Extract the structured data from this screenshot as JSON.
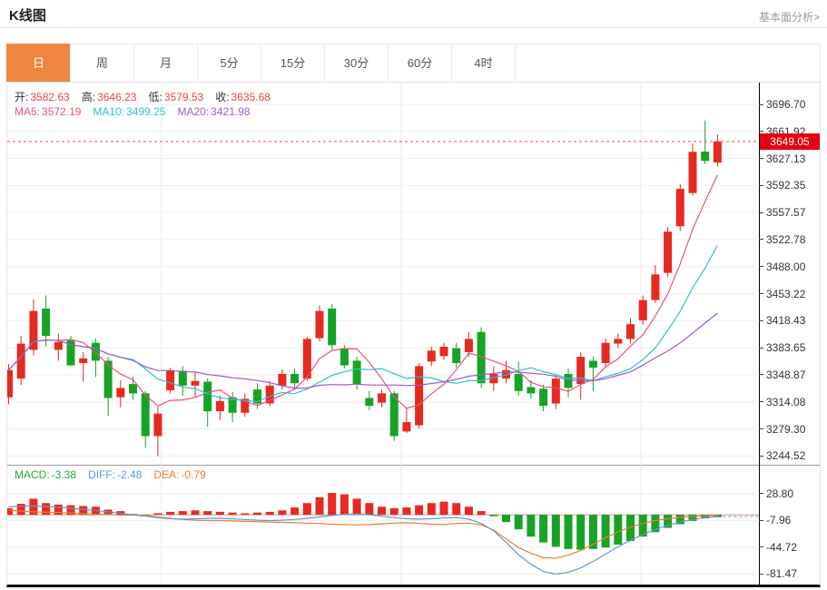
{
  "page": {
    "title": "K线图",
    "analysis_link": "基本面分析>"
  },
  "tabs": {
    "items": [
      "日",
      "周",
      "月",
      "5分",
      "15分",
      "30分",
      "60分",
      "4时"
    ],
    "active_index": 0
  },
  "legend": {
    "ohlc": [
      {
        "label": "开:",
        "value": "3582.63"
      },
      {
        "label": "高:",
        "value": "3646.23"
      },
      {
        "label": "低:",
        "value": "3579.53"
      },
      {
        "label": "收:",
        "value": "3635.68"
      }
    ],
    "ohlc_label_color": "#333333",
    "ohlc_value_color": "#e8453f",
    "ma": [
      {
        "label": "MA5:",
        "value": "3572.19",
        "color": "#e8537f"
      },
      {
        "label": "MA10:",
        "value": "3499.25",
        "color": "#2ec0cb"
      },
      {
        "label": "MA20:",
        "value": "3421.98",
        "color": "#a15dc6"
      }
    ],
    "macd": [
      {
        "label": "MACD:",
        "value": "-3.38",
        "color": "#21a838"
      },
      {
        "label": "DIFF:",
        "value": "-2.48",
        "color": "#5b9bd5"
      },
      {
        "label": "DEA:",
        "value": "-0.79",
        "color": "#ed7d31"
      }
    ]
  },
  "price_marker": "3649.05",
  "axis": {
    "price_labels": [
      "3696.70",
      "3661.92",
      "3627.13",
      "3592.35",
      "3557.57",
      "3522.78",
      "3488.00",
      "3453.22",
      "3418.43",
      "3383.65",
      "3348.87",
      "3314.08",
      "3279.30",
      "3244.52"
    ],
    "macd_labels": [
      "28.80",
      "-7.96",
      "-44.72",
      "-81.47"
    ]
  },
  "colors": {
    "up": "#e62a21",
    "down": "#17a325",
    "ma5": "#e8537f",
    "ma10": "#2ec0cb",
    "ma20": "#a15dc6",
    "diff": "#5b9bd5",
    "dea": "#ed7d31",
    "marker_bg": "#e60012",
    "marker_line": "#ff4a4a",
    "tab_active": "#ee8540",
    "grid": "#efefef",
    "vgrid": "#e9e9e9",
    "zero_line": "#c96a6a"
  },
  "chart_data": [
    {
      "type": "candlestick",
      "title": "K线图",
      "period": "日",
      "legend_position": "top-left",
      "grid": true,
      "current_price": 3649.05,
      "y_ticks": [
        3696.7,
        3661.92,
        3627.13,
        3592.35,
        3557.57,
        3522.78,
        3488.0,
        3453.22,
        3418.43,
        3383.65,
        3348.87,
        3314.08,
        3279.3,
        3244.52
      ],
      "ma_values": {
        "MA5": 3572.19,
        "MA10": 3499.25,
        "MA20": 3421.98
      },
      "ohlc": [
        [
          3320,
          3363,
          3311,
          3355
        ],
        [
          3344,
          3399,
          3336,
          3389
        ],
        [
          3381,
          3446,
          3374,
          3431
        ],
        [
          3434,
          3451,
          3385,
          3399
        ],
        [
          3381,
          3402,
          3367,
          3391
        ],
        [
          3393,
          3399,
          3360,
          3361
        ],
        [
          3364,
          3378,
          3340,
          3370
        ],
        [
          3390,
          3396,
          3346,
          3367
        ],
        [
          3367,
          3372,
          3296,
          3319
        ],
        [
          3320,
          3342,
          3307,
          3332
        ],
        [
          3337,
          3346,
          3317,
          3325
        ],
        [
          3325,
          3328,
          3255,
          3270
        ],
        [
          3270,
          3308,
          3244,
          3299
        ],
        [
          3329,
          3358,
          3325,
          3354
        ],
        [
          3354,
          3360,
          3322,
          3335
        ],
        [
          3335,
          3352,
          3320,
          3341
        ],
        [
          3340,
          3344,
          3282,
          3302
        ],
        [
          3302,
          3322,
          3291,
          3315
        ],
        [
          3320,
          3327,
          3288,
          3300
        ],
        [
          3300,
          3325,
          3295,
          3318
        ],
        [
          3330,
          3338,
          3305,
          3312
        ],
        [
          3312,
          3341,
          3308,
          3335
        ],
        [
          3335,
          3356,
          3330,
          3350
        ],
        [
          3350,
          3357,
          3331,
          3338
        ],
        [
          3344,
          3398,
          3341,
          3395
        ],
        [
          3396,
          3438,
          3392,
          3431
        ],
        [
          3434,
          3440,
          3381,
          3387
        ],
        [
          3383,
          3387,
          3357,
          3361
        ],
        [
          3367,
          3372,
          3330,
          3337
        ],
        [
          3319,
          3328,
          3303,
          3309
        ],
        [
          3313,
          3330,
          3307,
          3325
        ],
        [
          3325,
          3328,
          3264,
          3270
        ],
        [
          3276,
          3307,
          3274,
          3288
        ],
        [
          3284,
          3364,
          3280,
          3360
        ],
        [
          3366,
          3385,
          3360,
          3380
        ],
        [
          3373,
          3390,
          3368,
          3385
        ],
        [
          3383,
          3390,
          3358,
          3364
        ],
        [
          3378,
          3404,
          3372,
          3395
        ],
        [
          3404,
          3410,
          3332,
          3338
        ],
        [
          3338,
          3360,
          3328,
          3350
        ],
        [
          3344,
          3367,
          3338,
          3355
        ],
        [
          3350,
          3366,
          3322,
          3328
        ],
        [
          3333,
          3342,
          3318,
          3325
        ],
        [
          3331,
          3336,
          3302,
          3309
        ],
        [
          3312,
          3350,
          3305,
          3344
        ],
        [
          3350,
          3357,
          3320,
          3332
        ],
        [
          3337,
          3378,
          3317,
          3372
        ],
        [
          3367,
          3372,
          3328,
          3358
        ],
        [
          3364,
          3396,
          3358,
          3390
        ],
        [
          3389,
          3402,
          3383,
          3395
        ],
        [
          3395,
          3422,
          3389,
          3414
        ],
        [
          3419,
          3451,
          3413,
          3445
        ],
        [
          3445,
          3490,
          3441,
          3478
        ],
        [
          3480,
          3539,
          3475,
          3533
        ],
        [
          3540,
          3594,
          3534,
          3588
        ],
        [
          3582.63,
          3646.23,
          3579.53,
          3635.68
        ],
        [
          3636,
          3676,
          3620,
          3624
        ],
        [
          3622,
          3658,
          3617,
          3649.05
        ]
      ]
    },
    {
      "type": "bar",
      "name": "MACD",
      "y_ticks": [
        28.8,
        -7.96,
        -44.72,
        -81.47
      ],
      "values": {
        "MACD": -3.38,
        "DIFF": -2.48,
        "DEA": -0.79
      },
      "hist": [
        9,
        15,
        22,
        16,
        14,
        13,
        12,
        11,
        7,
        5,
        1,
        -2,
        2,
        4,
        5,
        6,
        5,
        4,
        3,
        2,
        3,
        4,
        6,
        10,
        16,
        24,
        30,
        28,
        22,
        16,
        11,
        9,
        10,
        13,
        16,
        18,
        16,
        11,
        5,
        -2,
        -10,
        -20,
        -30,
        -38,
        -44,
        -47,
        -48,
        -47,
        -45,
        -41,
        -36,
        -30,
        -24,
        -18,
        -13,
        -8.5,
        -5,
        -3.38
      ],
      "diff": [
        11,
        11.5,
        12,
        11.5,
        10.5,
        9,
        7.5,
        6,
        4,
        2,
        0,
        -2,
        -4,
        -5.5,
        -6,
        -5.5,
        -5,
        -5,
        -5.5,
        -6.5,
        -7.5,
        -8,
        -7.5,
        -6.5,
        -5,
        -3,
        -1,
        0.5,
        1,
        0,
        -2,
        -4,
        -5.5,
        -6,
        -5.5,
        -4.5,
        -4,
        -6,
        -12,
        -22,
        -38,
        -55,
        -68,
        -78,
        -81.5,
        -79,
        -73,
        -64,
        -54,
        -44,
        -35,
        -27,
        -20,
        -14.5,
        -10,
        -6.5,
        -4,
        -2.48
      ],
      "dea": [
        6.5,
        5,
        4,
        3.5,
        3,
        2.5,
        1.5,
        0.5,
        0.5,
        -0.5,
        -0.5,
        -1,
        -3,
        -5,
        -6.5,
        -7.5,
        -8,
        -8,
        -8.5,
        -9,
        -9.5,
        -10,
        -10.5,
        -11,
        -11.5,
        -12,
        -13,
        -13.5,
        -14,
        -13.5,
        -12.5,
        -11.5,
        -11,
        -12,
        -13,
        -13.5,
        -12,
        -11.5,
        -14,
        -21,
        -33,
        -45,
        -53,
        -59,
        -59.5,
        -55.5,
        -49,
        -40.5,
        -31.5,
        -23.5,
        -17,
        -12,
        -8,
        -5.5,
        -3.5,
        -2.25,
        -1.5,
        -0.79
      ]
    }
  ]
}
